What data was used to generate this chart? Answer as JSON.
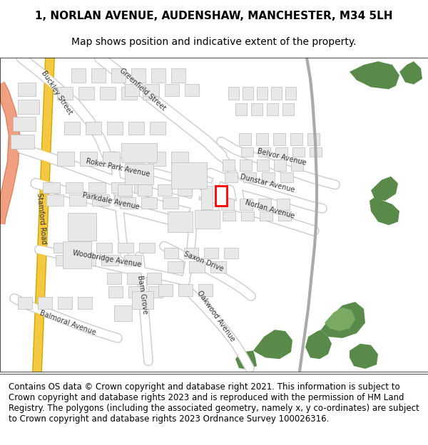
{
  "title_line1": "1, NORLAN AVENUE, AUDENSHAW, MANCHESTER, M34 5LH",
  "title_line2": "Map shows position and indicative extent of the property.",
  "footer_text": "Contains OS data © Crown copyright and database right 2021. This information is subject to Crown copyright and database rights 2023 and is reproduced with the permission of HM Land Registry. The polygons (including the associated geometry, namely x, y co-ordinates) are subject to Crown copyright and database rights 2023 Ordnance Survey 100026316.",
  "bg_color": "#ffffff",
  "map_bg": "#f5f5f5",
  "road_color": "#ffffff",
  "road_outline": "#cccccc",
  "building_fill": "#e8e8e8",
  "building_outline": "#bbbbbb",
  "green_dark": "#5a8a4a",
  "green_light": "#8ab87a",
  "highlight_color": "#ff0000",
  "road_yellow": "#f5c842",
  "road_salmon": "#f0a080",
  "title_fontsize": 11,
  "subtitle_fontsize": 10,
  "footer_fontsize": 8.5,
  "label_fontsize": 7.5
}
